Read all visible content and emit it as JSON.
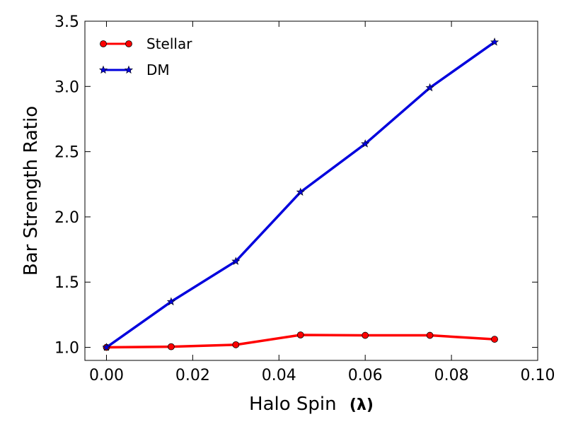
{
  "chart_data": {
    "type": "line",
    "title": "",
    "xlabel": "Halo Spin",
    "xlabel_symbol": "(λ)",
    "ylabel": "Bar Strength Ratio",
    "xlim": [
      -0.005,
      0.1
    ],
    "ylim": [
      0.9,
      3.5
    ],
    "x_ticks": [
      0.0,
      0.02,
      0.04,
      0.06,
      0.08,
      0.1
    ],
    "x_tick_labels": [
      "0.00",
      "0.02",
      "0.04",
      "0.06",
      "0.08",
      "0.10"
    ],
    "y_ticks": [
      1.0,
      1.5,
      2.0,
      2.5,
      3.0,
      3.5
    ],
    "y_tick_labels": [
      "1.0",
      "1.5",
      "2.0",
      "2.5",
      "3.0",
      "3.5"
    ],
    "grid": false,
    "legend_position": "top-left",
    "x": [
      0.0,
      0.015,
      0.03,
      0.045,
      0.06,
      0.075,
      0.09
    ],
    "series": [
      {
        "name": "Stellar",
        "color": "#ff0000",
        "marker": "circle",
        "values": [
          1.0,
          1.005,
          1.02,
          1.095,
          1.092,
          1.092,
          1.062
        ]
      },
      {
        "name": "DM",
        "color": "#0000dd",
        "marker": "star",
        "values": [
          1.0,
          1.35,
          1.66,
          2.19,
          2.56,
          2.99,
          3.34
        ]
      }
    ]
  }
}
